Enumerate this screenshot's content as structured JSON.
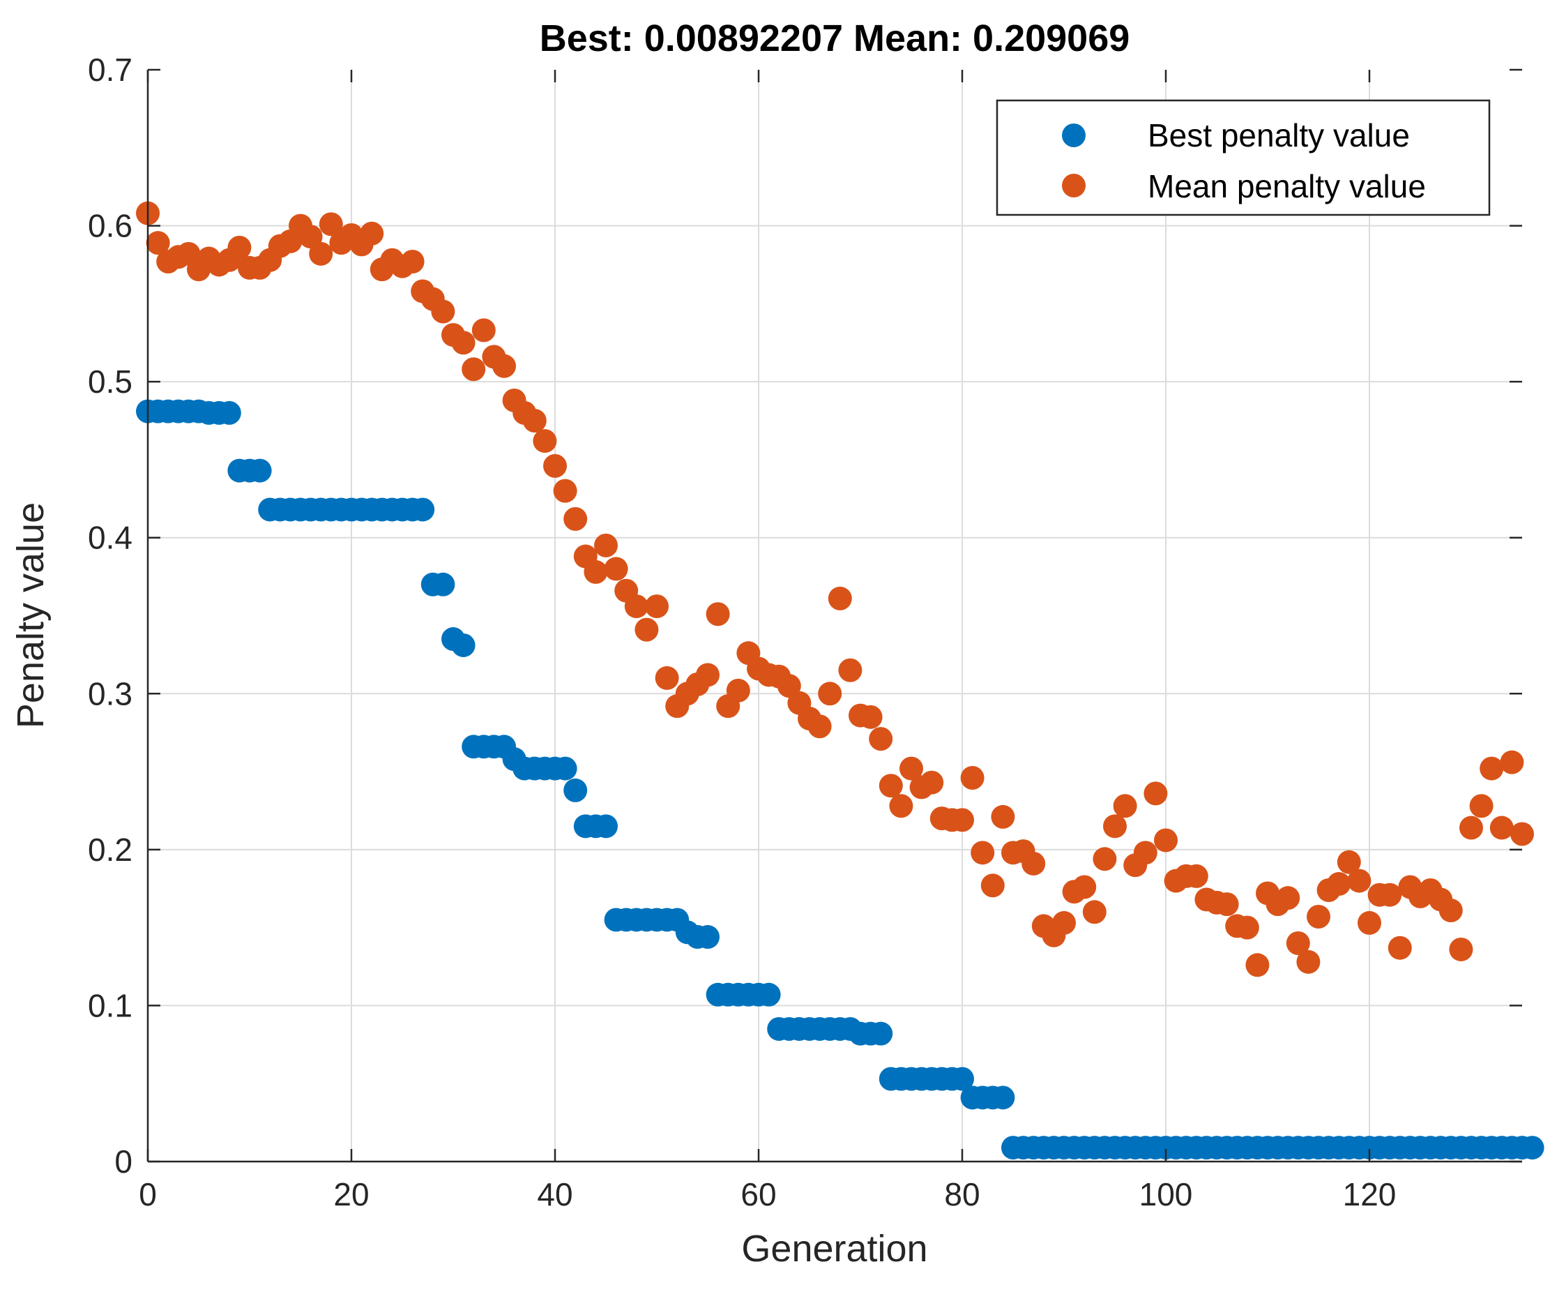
{
  "chart_data": {
    "type": "scatter",
    "title": "Best: 0.00892207 Mean: 0.209069",
    "xlabel": "Generation",
    "ylabel": "Penalty value",
    "xlim": [
      0,
      135
    ],
    "ylim": [
      0,
      0.7
    ],
    "xticks": [
      0,
      20,
      40,
      60,
      80,
      100,
      120
    ],
    "yticks": [
      0,
      0.1,
      0.2,
      0.3,
      0.4,
      0.5,
      0.6,
      0.7
    ],
    "xtick_labels": [
      "0",
      "20",
      "40",
      "60",
      "80",
      "100",
      "120"
    ],
    "ytick_labels": [
      "0",
      "0.1",
      "0.2",
      "0.3",
      "0.4",
      "0.5",
      "0.6",
      "0.7"
    ],
    "grid": true,
    "legend_position": "top-right",
    "series": [
      {
        "name": "Best penalty value",
        "color": "#0072BD",
        "values": [
          0.481,
          0.481,
          0.481,
          0.481,
          0.481,
          0.481,
          0.48,
          0.48,
          0.48,
          0.443,
          0.443,
          0.443,
          0.418,
          0.418,
          0.418,
          0.418,
          0.418,
          0.418,
          0.418,
          0.418,
          0.418,
          0.418,
          0.418,
          0.418,
          0.418,
          0.418,
          0.418,
          0.418,
          0.37,
          0.37,
          0.335,
          0.331,
          0.266,
          0.266,
          0.266,
          0.266,
          0.258,
          0.252,
          0.252,
          0.252,
          0.252,
          0.252,
          0.238,
          0.215,
          0.215,
          0.215,
          0.155,
          0.155,
          0.155,
          0.155,
          0.155,
          0.155,
          0.155,
          0.147,
          0.144,
          0.144,
          0.107,
          0.107,
          0.107,
          0.107,
          0.107,
          0.107,
          0.085,
          0.085,
          0.085,
          0.085,
          0.085,
          0.085,
          0.085,
          0.085,
          0.082,
          0.082,
          0.082,
          0.053,
          0.053,
          0.053,
          0.053,
          0.053,
          0.053,
          0.053,
          0.053,
          0.041,
          0.041,
          0.041,
          0.041,
          0.0089,
          0.0089,
          0.0089,
          0.0089,
          0.0089,
          0.0089,
          0.0089,
          0.0089,
          0.0089,
          0.0089,
          0.0089,
          0.0089,
          0.0089,
          0.0089,
          0.0089,
          0.0089,
          0.0089,
          0.0089,
          0.0089,
          0.0089,
          0.0089,
          0.0089,
          0.0089,
          0.0089,
          0.0089,
          0.0089,
          0.0089,
          0.0089,
          0.0089,
          0.0089,
          0.0089,
          0.0089,
          0.0089,
          0.0089,
          0.0089,
          0.0089,
          0.0089,
          0.0089,
          0.0089,
          0.0089,
          0.0089,
          0.0089,
          0.0089,
          0.0089,
          0.0089,
          0.0089,
          0.0089,
          0.0089,
          0.0089,
          0.0089,
          0.0089,
          0.0089
        ]
      },
      {
        "name": "Mean penalty value",
        "color": "#D95319",
        "values": [
          0.608,
          0.589,
          0.577,
          0.58,
          0.582,
          0.572,
          0.579,
          0.575,
          0.578,
          0.586,
          0.573,
          0.573,
          0.578,
          0.587,
          0.59,
          0.6,
          0.593,
          0.582,
          0.601,
          0.589,
          0.594,
          0.588,
          0.595,
          0.572,
          0.578,
          0.574,
          0.577,
          0.558,
          0.553,
          0.545,
          0.53,
          0.525,
          0.508,
          0.533,
          0.516,
          0.51,
          0.488,
          0.48,
          0.475,
          0.462,
          0.446,
          0.43,
          0.412,
          0.388,
          0.378,
          0.395,
          0.38,
          0.366,
          0.356,
          0.341,
          0.356,
          0.31,
          0.292,
          0.3,
          0.306,
          0.312,
          0.351,
          0.292,
          0.302,
          0.326,
          0.316,
          0.312,
          0.311,
          0.305,
          0.294,
          0.284,
          0.279,
          0.3,
          0.361,
          0.315,
          0.286,
          0.285,
          0.271,
          0.241,
          0.228,
          0.252,
          0.24,
          0.243,
          0.22,
          0.219,
          0.219,
          0.246,
          0.198,
          0.177,
          0.221,
          0.198,
          0.199,
          0.191,
          0.151,
          0.145,
          0.153,
          0.173,
          0.176,
          0.16,
          0.194,
          0.215,
          0.228,
          0.19,
          0.198,
          0.236,
          0.206,
          0.18,
          0.183,
          0.183,
          0.168,
          0.166,
          0.165,
          0.151,
          0.15,
          0.126,
          0.172,
          0.165,
          0.169,
          0.14,
          0.128,
          0.157,
          0.174,
          0.178,
          0.192,
          0.18,
          0.153,
          0.171,
          0.171,
          0.137,
          0.176,
          0.17,
          0.174,
          0.168,
          0.161,
          0.136,
          0.214,
          0.228,
          0.252,
          0.214,
          0.256,
          0.21
        ]
      }
    ]
  }
}
